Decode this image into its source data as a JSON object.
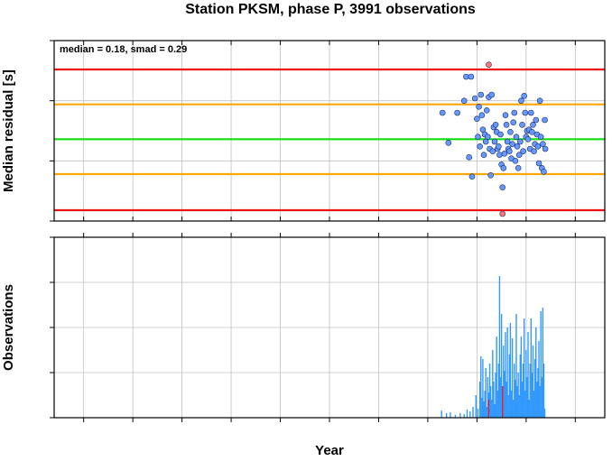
{
  "chart_data": [
    {
      "type": "scatter",
      "title": "Station PKSM, phase P, 3991 observations",
      "ylabel": "Median residual [s]",
      "annotation": "median = 0.18, smad = 0.29",
      "xlim": [
        1962,
        2018
      ],
      "ylim": [
        -0.5,
        1.0
      ],
      "y_ticks": [
        "1.0",
        "0.5",
        "0.0",
        "-0.5"
      ],
      "grid": true,
      "reference_lines": [
        {
          "y": 0.76,
          "color": "#ee1111"
        },
        {
          "y": 0.47,
          "color": "#ffa500"
        },
        {
          "y": 0.18,
          "color": "#11dd11"
        },
        {
          "y": -0.11,
          "color": "#ffa500"
        },
        {
          "y": -0.41,
          "color": "#ee1111"
        }
      ],
      "series": [
        {
          "color": "#6699ff",
          "points": [
            [
              2001.5,
              0.4
            ],
            [
              2002.1,
              0.15
            ],
            [
              2003.0,
              0.4
            ],
            [
              2003.7,
              0.5
            ],
            [
              2003.9,
              0.7
            ],
            [
              2004.2,
              0.03
            ],
            [
              2004.4,
              0.7
            ],
            [
              2004.5,
              -0.13
            ],
            [
              2004.8,
              0.52
            ],
            [
              2005.0,
              0.35
            ],
            [
              2005.1,
              0.2
            ],
            [
              2005.2,
              0.45
            ],
            [
              2005.3,
              0.12
            ],
            [
              2005.4,
              0.55
            ],
            [
              2005.5,
              0.38
            ],
            [
              2005.6,
              0.26
            ],
            [
              2005.7,
              0.05
            ],
            [
              2005.8,
              0.22
            ],
            [
              2005.9,
              0.16
            ],
            [
              2006.0,
              0.42
            ],
            [
              2006.1,
              0.2
            ],
            [
              2006.2,
              0.53
            ],
            [
              2006.3,
              0.1
            ],
            [
              2006.4,
              -0.12
            ],
            [
              2006.5,
              0.55
            ],
            [
              2006.6,
              0.08
            ],
            [
              2006.7,
              0.28
            ],
            [
              2006.8,
              0.16
            ],
            [
              2006.9,
              0.3
            ],
            [
              2007.0,
              0.24
            ],
            [
              2007.1,
              0.1
            ],
            [
              2007.2,
              0.12
            ],
            [
              2007.3,
              0.05
            ],
            [
              2007.4,
              0.22
            ],
            [
              2007.5,
              -0.03
            ],
            [
              2007.6,
              -0.22
            ],
            [
              2007.7,
              -0.06
            ],
            [
              2007.8,
              0.06
            ],
            [
              2007.9,
              0.38
            ],
            [
              2008.0,
              0.3
            ],
            [
              2008.1,
              0.16
            ],
            [
              2008.2,
              0.1
            ],
            [
              2008.3,
              0.08
            ],
            [
              2008.4,
              0.24
            ],
            [
              2008.5,
              0.02
            ],
            [
              2008.6,
              0.14
            ],
            [
              2008.7,
              0.32
            ],
            [
              2008.8,
              0.4
            ],
            [
              2008.9,
              0.0
            ],
            [
              2009.0,
              0.2
            ],
            [
              2009.1,
              0.12
            ],
            [
              2009.2,
              -0.06
            ],
            [
              2009.3,
              0.05
            ],
            [
              2009.4,
              0.16
            ],
            [
              2009.5,
              0.5
            ],
            [
              2009.6,
              0.3
            ],
            [
              2009.7,
              0.08
            ],
            [
              2009.8,
              0.54
            ],
            [
              2009.9,
              0.4
            ],
            [
              2010.0,
              0.2
            ],
            [
              2010.1,
              0.25
            ],
            [
              2010.2,
              0.18
            ],
            [
              2010.3,
              0.26
            ],
            [
              2010.4,
              0.1
            ],
            [
              2010.5,
              0.4
            ],
            [
              2010.6,
              0.24
            ],
            [
              2010.7,
              0.3
            ],
            [
              2010.8,
              0.08
            ],
            [
              2010.9,
              0.14
            ],
            [
              2011.0,
              0.34
            ],
            [
              2011.1,
              0.22
            ],
            [
              2011.2,
              0.12
            ],
            [
              2011.3,
              -0.02
            ],
            [
              2011.4,
              0.5
            ],
            [
              2011.5,
              0.2
            ],
            [
              2011.6,
              -0.06
            ],
            [
              2011.7,
              0.14
            ],
            [
              2011.8,
              -0.09
            ],
            [
              2011.9,
              0.34
            ],
            [
              2011.95,
              0.1
            ]
          ]
        },
        {
          "color": "#ff7777",
          "points": [
            [
              2006.2,
              0.8
            ],
            [
              2007.6,
              -0.44
            ]
          ]
        }
      ]
    },
    {
      "type": "bar",
      "xlabel": "Year",
      "ylabel": "Observations",
      "xlim": [
        1962,
        2018
      ],
      "ylim": [
        0,
        200
      ],
      "x_ticks": [
        "1965",
        "1970",
        "1975",
        "1980",
        "1985",
        "1990",
        "1995",
        "2000",
        "2005",
        "2010",
        "2015"
      ],
      "y_ticks": [
        "200",
        "150",
        "100",
        "50",
        "0"
      ],
      "grid": true,
      "series": [
        {
          "color": "#3399ff",
          "x": [
            2001.4,
            2001.9,
            2002.3,
            2002.8,
            2003.3,
            2003.7,
            2004.0,
            2004.3,
            2004.6,
            2004.9,
            2005.1,
            2005.3,
            2005.4,
            2005.5,
            2005.6,
            2005.7,
            2005.8,
            2005.9,
            2006.0,
            2006.1,
            2006.2,
            2006.3,
            2006.4,
            2006.5,
            2006.6,
            2006.7,
            2006.8,
            2006.9,
            2007.0,
            2007.1,
            2007.2,
            2007.3,
            2007.4,
            2007.5,
            2007.6,
            2007.7,
            2007.8,
            2007.9,
            2008.0,
            2008.1,
            2008.2,
            2008.3,
            2008.4,
            2008.5,
            2008.6,
            2008.7,
            2008.8,
            2008.9,
            2009.0,
            2009.1,
            2009.2,
            2009.3,
            2009.4,
            2009.5,
            2009.6,
            2009.7,
            2009.8,
            2009.9,
            2010.0,
            2010.1,
            2010.2,
            2010.3,
            2010.4,
            2010.5,
            2010.6,
            2010.7,
            2010.8,
            2010.9,
            2011.0,
            2011.1,
            2011.2,
            2011.3,
            2011.4,
            2011.5,
            2011.6,
            2011.7,
            2011.8,
            2011.9
          ],
          "values": [
            8,
            5,
            6,
            3,
            5,
            4,
            9,
            7,
            12,
            25,
            10,
            40,
            68,
            22,
            65,
            18,
            30,
            55,
            12,
            45,
            28,
            60,
            35,
            20,
            75,
            40,
            15,
            50,
            90,
            30,
            60,
            157,
            45,
            115,
            35,
            80,
            52,
            95,
            40,
            100,
            25,
            70,
            105,
            30,
            88,
            20,
            60,
            42,
            115,
            35,
            50,
            25,
            70,
            90,
            40,
            60,
            110,
            30,
            75,
            45,
            95,
            20,
            60,
            110,
            50,
            80,
            30,
            65,
            100,
            40,
            55,
            85,
            35,
            118,
            45,
            122,
            60,
            10
          ]
        },
        {
          "color": "#ee2222",
          "x": [
            2006.2,
            2007.6
          ],
          "values": [
            20,
            35
          ]
        }
      ]
    }
  ]
}
